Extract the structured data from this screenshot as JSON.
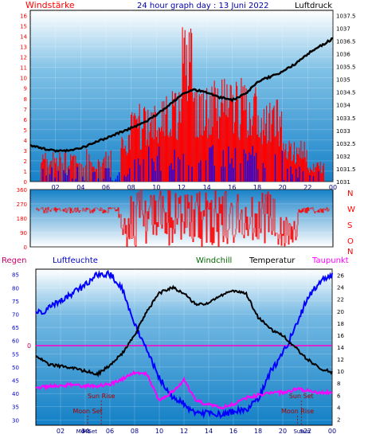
{
  "chart_data": [
    {
      "type": "line",
      "title": "24 hour graph day : 13 Juni 2022",
      "ylabel_left": "Windstärke",
      "ylabel_right": "Luftdruck",
      "x_ticks": [
        "02",
        "04",
        "06",
        "08",
        "10",
        "12",
        "14",
        "16",
        "18",
        "20",
        "22",
        "00"
      ],
      "y_left_ticks": [
        0,
        1,
        2,
        3,
        4,
        5,
        6,
        7,
        8,
        9,
        10,
        11,
        12,
        13,
        14,
        15,
        16
      ],
      "y_right_ticks": [
        1031,
        1031.5,
        1032,
        1032.5,
        1033,
        1033.5,
        1034,
        1034.5,
        1035,
        1035.5,
        1036,
        1036.5,
        1037,
        1037.5
      ],
      "ylim_left": [
        0,
        16.5
      ],
      "ylim_right": [
        1031,
        1037.7
      ],
      "colors": {
        "wind": "#ff0000",
        "gust": "#0000ff",
        "pressure": "#000000",
        "title": "#0000aa",
        "left_label": "#ff0000",
        "right_label": "#000000"
      },
      "series": [
        {
          "axis": "right",
          "x": [
            0,
            1,
            2,
            3,
            4,
            5,
            6,
            7,
            8,
            9,
            10,
            11,
            12,
            13,
            14,
            15,
            16,
            17,
            18,
            19,
            20,
            21,
            22,
            23,
            24
          ],
          "values": [
            1032.4,
            1032.3,
            1032.2,
            1032.2,
            1032.3,
            1032.5,
            1032.7,
            1032.9,
            1033.1,
            1033.3,
            1033.6,
            1034.0,
            1034.4,
            1034.6,
            1034.5,
            1034.3,
            1034.2,
            1034.4,
            1034.9,
            1035.1,
            1035.3,
            1035.6,
            1036.0,
            1036.3,
            1036.6
          ]
        }
      ]
    },
    {
      "type": "line",
      "ylabel_right": [
        "N",
        "W",
        "S",
        "O",
        "N"
      ],
      "y_ticks": [
        0,
        90,
        180,
        270,
        360
      ],
      "ylim": [
        0,
        360
      ],
      "colors": {
        "direction": "#ff0000"
      }
    },
    {
      "type": "line",
      "legend": [
        "Regen",
        "Luftfeuchte",
        "Windchill",
        "Temperatur",
        "Taupunkt"
      ],
      "legend_colors": [
        "#cc0066",
        "#0000cc",
        "#006600",
        "#000000",
        "#ff00ff"
      ],
      "y_left_ticks": [
        30,
        35,
        40,
        45,
        50,
        55,
        60,
        65,
        70,
        75,
        80,
        85
      ],
      "y_right_ticks": [
        2,
        4,
        6,
        8,
        10,
        12,
        14,
        16,
        18,
        20,
        22,
        24,
        26
      ],
      "ylim_left": [
        28,
        87
      ],
      "ylim_right": [
        1,
        27
      ],
      "zero_line_label": "0",
      "annotations": [
        {
          "text": "Sun Rise",
          "x": 5.3
        },
        {
          "text": "Sun Set",
          "x": 21.5
        },
        {
          "text": "Moon Set",
          "x": 4.2
        },
        {
          "text": "Moon Rise",
          "x": 21.2
        }
      ],
      "x_ticks": [
        "02",
        "04",
        "06",
        "08",
        "10",
        "12",
        "14",
        "16",
        "18",
        "20",
        "22",
        "00"
      ],
      "x_extra_ticks": [
        "Mo",
        "Mo",
        "Set",
        "Sun",
        "Sun"
      ],
      "series": [
        {
          "name": "Luftfeuchte",
          "axis": "left",
          "x": [
            0,
            1,
            2,
            3,
            4,
            5,
            6,
            7,
            8,
            9,
            10,
            11,
            12,
            13,
            14,
            15,
            16,
            17,
            18,
            19,
            20,
            21,
            22,
            23,
            24
          ],
          "values": [
            70,
            72,
            75,
            78,
            81,
            85,
            85,
            80,
            66,
            56,
            46,
            39,
            36,
            32,
            33,
            32,
            33,
            34,
            38,
            48,
            55,
            65,
            76,
            82,
            85
          ]
        },
        {
          "name": "Temperatur",
          "axis": "right",
          "x": [
            0,
            1,
            2,
            3,
            4,
            5,
            6,
            7,
            8,
            9,
            10,
            11,
            12,
            13,
            14,
            15,
            16,
            17,
            18,
            19,
            20,
            21,
            22,
            23,
            24
          ],
          "values": [
            12.5,
            11.2,
            10.8,
            10.5,
            10.0,
            9.5,
            11.0,
            13.0,
            16.0,
            20.0,
            23.0,
            24.0,
            23.0,
            21.0,
            21.5,
            22.5,
            23.5,
            23.0,
            19.0,
            17.0,
            16.0,
            14.0,
            12.0,
            10.5,
            9.8
          ]
        },
        {
          "name": "Taupunkt",
          "axis": "right",
          "x": [
            0,
            1,
            2,
            3,
            4,
            5,
            6,
            7,
            8,
            9,
            10,
            11,
            12,
            13,
            14,
            15,
            16,
            17,
            18,
            19,
            20,
            21,
            22,
            23,
            24
          ],
          "values": [
            7.3,
            7.4,
            7.6,
            7.8,
            7.5,
            7.5,
            7.8,
            8.7,
            9.8,
            9.5,
            5.0,
            6.5,
            8.5,
            5.0,
            4.5,
            4.0,
            4.5,
            5.5,
            6.0,
            6.3,
            6.5,
            7.0,
            6.8,
            6.5,
            6.4
          ]
        }
      ]
    }
  ]
}
